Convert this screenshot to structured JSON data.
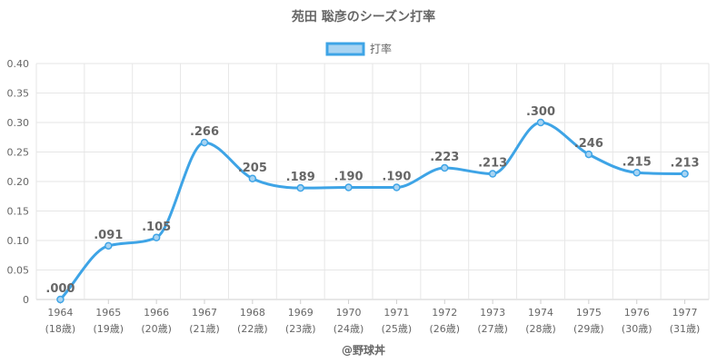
{
  "chart_data": {
    "type": "line",
    "title": "苑田 聡彦のシーズン打率",
    "legend": {
      "position": "top",
      "label": "打率"
    },
    "footer": "@野球丼",
    "colors": {
      "line": "#3ea4e6",
      "fill": "#a9d4f2",
      "grid": "#e6e6e6",
      "text": "#666666"
    },
    "grid": true,
    "ylim": [
      0,
      0.4
    ],
    "y_ticks": [
      "0",
      "0.05",
      "0.10",
      "0.15",
      "0.20",
      "0.25",
      "0.30",
      "0.35",
      "0.40"
    ],
    "y_tick_values": [
      0,
      0.05,
      0.1,
      0.15,
      0.2,
      0.25,
      0.3,
      0.35,
      0.4
    ],
    "categories": [
      "1964",
      "1965",
      "1966",
      "1967",
      "1968",
      "1969",
      "1970",
      "1971",
      "1972",
      "1973",
      "1974",
      "1975",
      "1976",
      "1977"
    ],
    "ages": [
      "(18歳)",
      "(19歳)",
      "(20歳)",
      "(21歳)",
      "(22歳)",
      "(23歳)",
      "(24歳)",
      "(25歳)",
      "(26歳)",
      "(27歳)",
      "(28歳)",
      "(29歳)",
      "(30歳)",
      "(31歳)"
    ],
    "series": [
      {
        "name": "打率",
        "values": [
          0.0,
          0.091,
          0.105,
          0.266,
          0.205,
          0.189,
          0.19,
          0.19,
          0.223,
          0.213,
          0.3,
          0.246,
          0.215,
          0.213
        ],
        "labels": [
          ".000",
          ".091",
          ".105",
          ".266",
          ".205",
          ".189",
          ".190",
          ".190",
          ".223",
          ".213",
          ".300",
          ".246",
          ".215",
          ".213"
        ]
      }
    ]
  }
}
